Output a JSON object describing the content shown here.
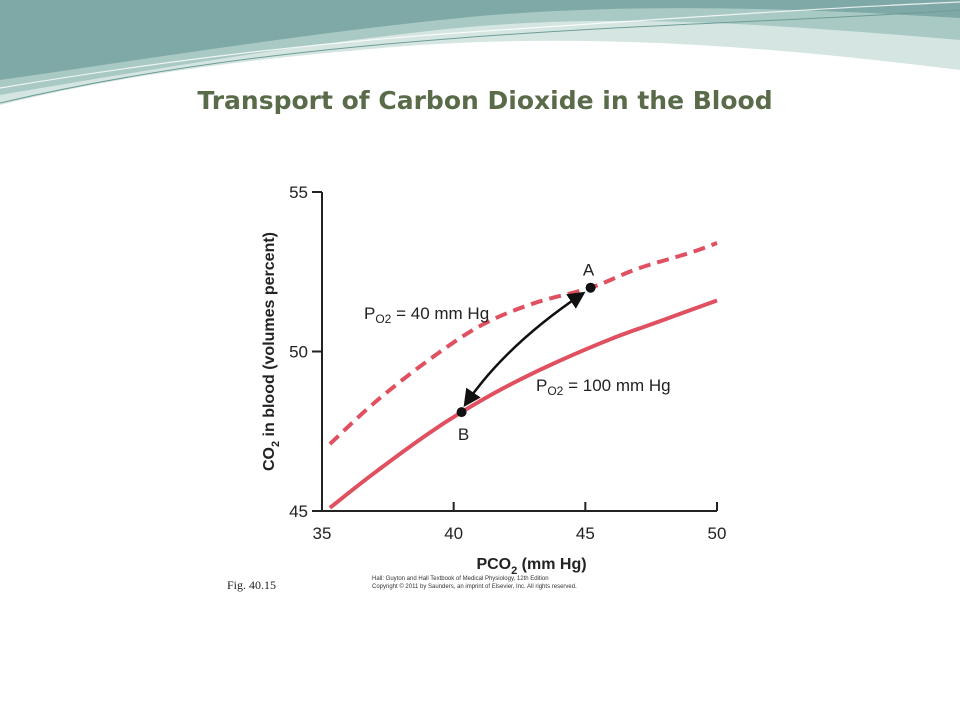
{
  "slide": {
    "title": "Transport of Carbon Dioxide in the Blood",
    "caption": "Fig. 40.15",
    "credit_line1": "Hall: Guyton and Hall Textbook of Medical Physiology, 12th Edition",
    "credit_line2": "Copyright © 2011 by Saunders, an imprint of Elsevier, Inc. All rights reserved."
  },
  "colors": {
    "curve": "#e05060",
    "arrow": "#111111",
    "banner_dark": "#7fa9a6",
    "banner_light": "#d5e6e2",
    "title": "#5a6b4a"
  },
  "chart_data": {
    "type": "line",
    "xlabel": "PCO",
    "xlabel_sub": "2",
    "xlabel_unit": " (mm Hg)",
    "ylabel": "CO",
    "ylabel_sub": "2",
    "ylabel_unit": " in blood (volumes percent)",
    "xlim": [
      35,
      50
    ],
    "ylim": [
      45,
      55
    ],
    "xticks": [
      35,
      40,
      45,
      50
    ],
    "yticks": [
      45,
      50,
      55
    ],
    "grid": false,
    "series": [
      {
        "name": "PO2 = 40 mm Hg",
        "label_main": "P",
        "label_sub": "O2",
        "label_rest": " = 40 mm Hg",
        "style": "dashed",
        "x": [
          35.3,
          37,
          39,
          41,
          43,
          45.2,
          47,
          49,
          50
        ],
        "y": [
          47.1,
          48.4,
          49.7,
          50.8,
          51.5,
          52.0,
          52.6,
          53.1,
          53.4
        ]
      },
      {
        "name": "PO2 = 100 mm Hg",
        "label_main": "P",
        "label_sub": "O2",
        "label_rest": " = 100 mm Hg",
        "style": "solid",
        "x": [
          35.3,
          37,
          39,
          40.3,
          42,
          44,
          46,
          48,
          50
        ],
        "y": [
          45.1,
          46.2,
          47.4,
          48.1,
          48.9,
          49.7,
          50.4,
          51.0,
          51.6
        ]
      }
    ],
    "points": [
      {
        "name": "A",
        "x": 45.2,
        "y": 52.0
      },
      {
        "name": "B",
        "x": 40.3,
        "y": 48.1
      }
    ]
  }
}
